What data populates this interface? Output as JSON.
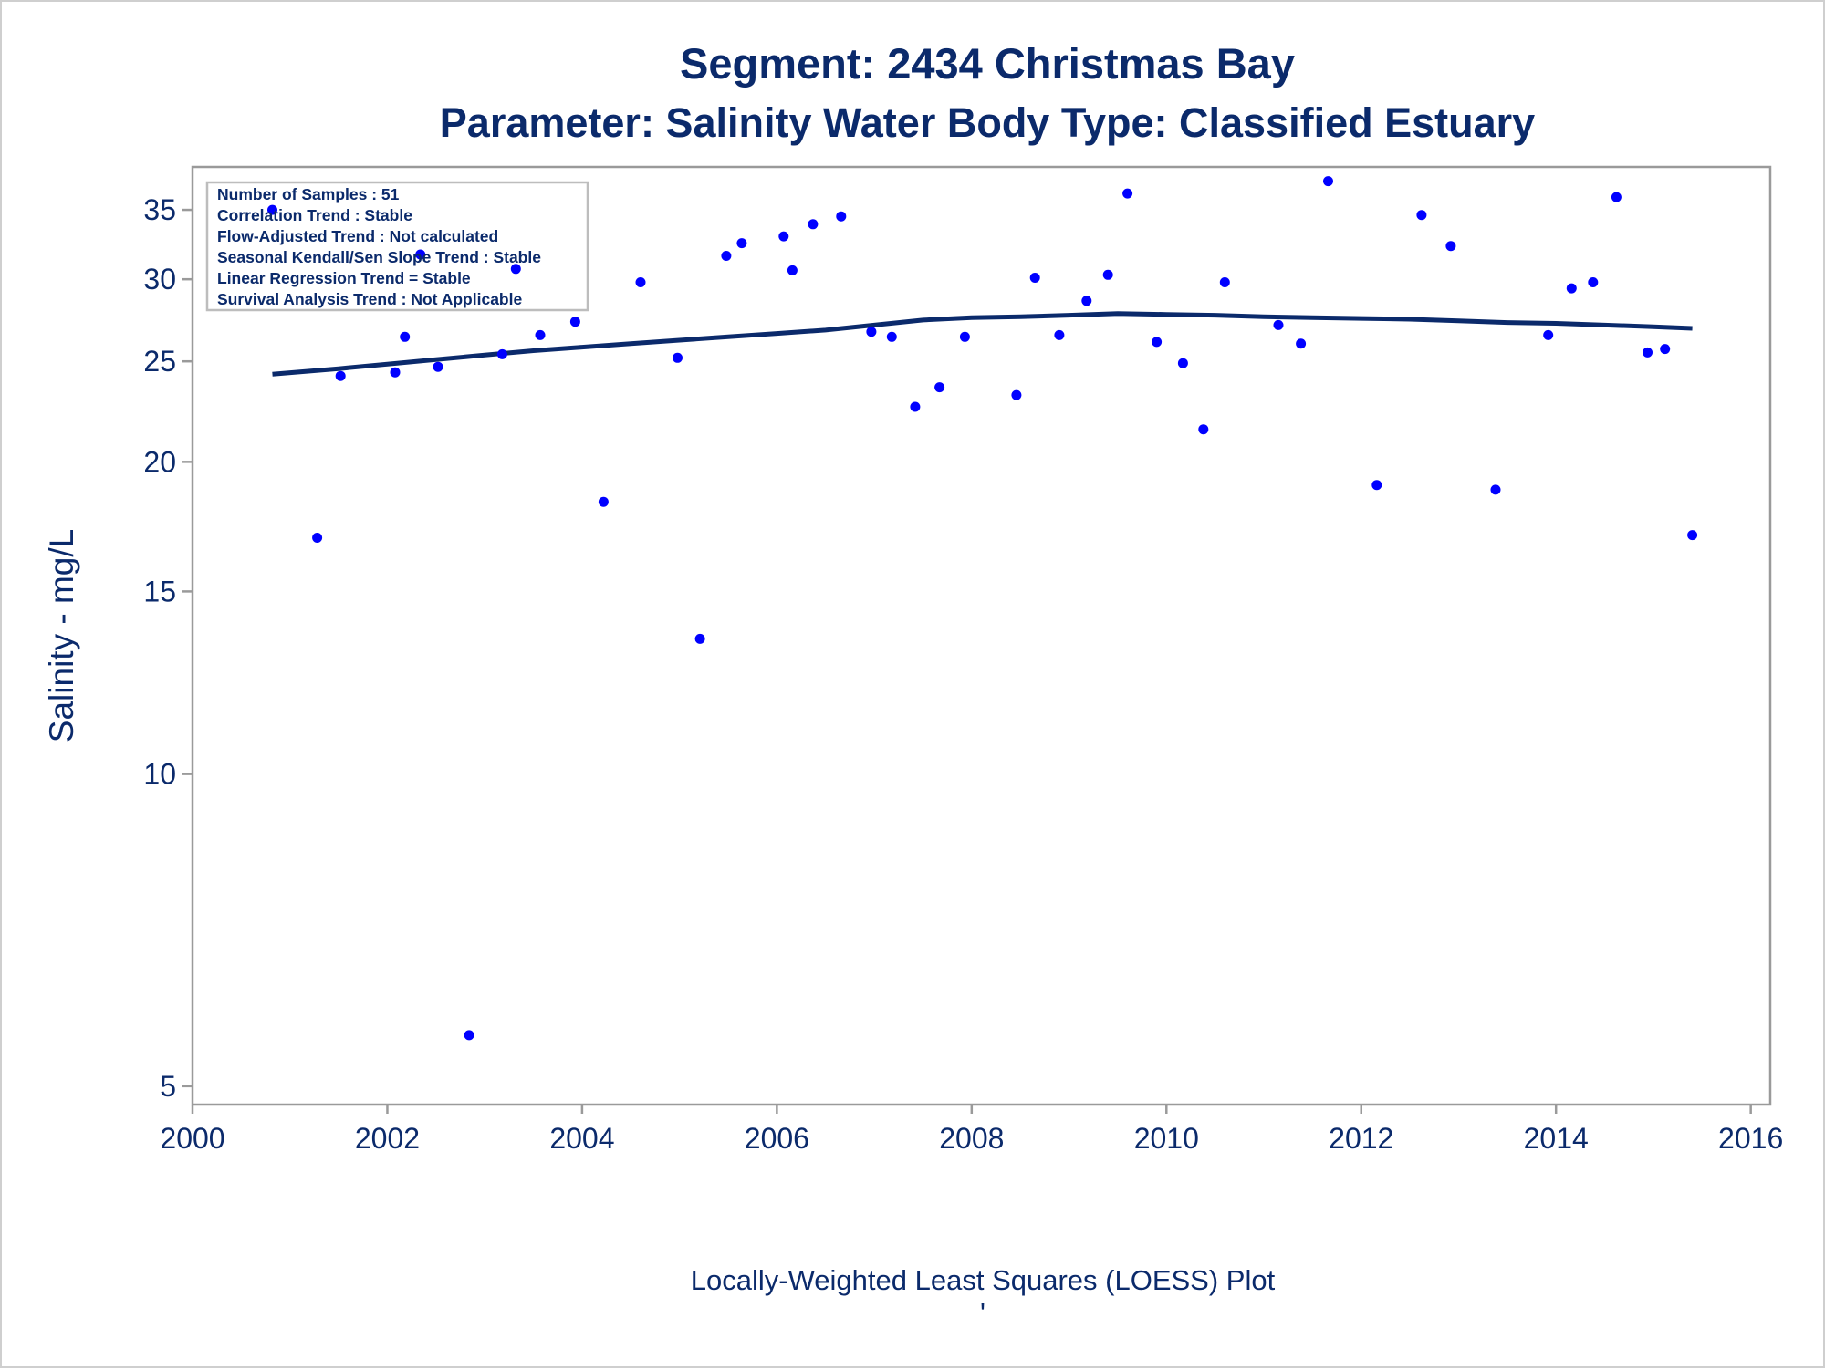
{
  "chart_data": {
    "type": "scatter",
    "title": "Segment: 2434  Christmas Bay",
    "subtitle": "Parameter: Salinity   Water Body Type: Classified Estuary",
    "xlabel": "Locally-Weighted Least Squares (LOESS) Plot",
    "ylabel": "Salinity - mg/L",
    "footnote_mark": "'",
    "x_scale": "linear",
    "y_scale": "log",
    "xlim": [
      2000,
      2016.2
    ],
    "ylim": [
      4.8,
      38.5
    ],
    "x_ticks": [
      "2000",
      "2002",
      "2004",
      "2006",
      "2008",
      "2010",
      "2012",
      "2014",
      "2016"
    ],
    "y_ticks": [
      "5",
      "10",
      "15",
      "20",
      "25",
      "30",
      "35"
    ],
    "grid": false,
    "legend": "none",
    "colors": {
      "points": "#0000ff",
      "loess": "#0b2a6b",
      "text": "#0b2a6b",
      "frame": "#9a9a9a"
    },
    "stats_box": {
      "placement": "top-left",
      "lines": [
        "Number of Samples : 51",
        "Correlation Trend : Stable",
        "Flow-Adjusted Trend : Not calculated",
        "Seasonal Kendall/Sen Slope Trend : Stable",
        "Linear Regression Trend = Stable",
        "Survival Analysis Trend : Not Applicable"
      ]
    },
    "points": [
      {
        "x": 2000.82,
        "y": 35.0
      },
      {
        "x": 2001.28,
        "y": 16.9
      },
      {
        "x": 2001.52,
        "y": 24.2
      },
      {
        "x": 2002.08,
        "y": 24.4
      },
      {
        "x": 2002.18,
        "y": 26.4
      },
      {
        "x": 2002.34,
        "y": 31.7
      },
      {
        "x": 2002.52,
        "y": 24.7
      },
      {
        "x": 2002.84,
        "y": 5.6
      },
      {
        "x": 2003.18,
        "y": 25.4
      },
      {
        "x": 2003.32,
        "y": 30.7
      },
      {
        "x": 2003.57,
        "y": 26.5
      },
      {
        "x": 2003.93,
        "y": 27.3
      },
      {
        "x": 2004.22,
        "y": 18.3
      },
      {
        "x": 2004.6,
        "y": 29.8
      },
      {
        "x": 2004.98,
        "y": 25.2
      },
      {
        "x": 2005.21,
        "y": 13.5
      },
      {
        "x": 2005.48,
        "y": 31.6
      },
      {
        "x": 2005.64,
        "y": 32.5
      },
      {
        "x": 2006.07,
        "y": 33.0
      },
      {
        "x": 2006.16,
        "y": 30.6
      },
      {
        "x": 2006.37,
        "y": 33.9
      },
      {
        "x": 2006.66,
        "y": 34.5
      },
      {
        "x": 2006.97,
        "y": 26.7
      },
      {
        "x": 2007.18,
        "y": 26.4
      },
      {
        "x": 2007.42,
        "y": 22.6
      },
      {
        "x": 2007.67,
        "y": 23.6
      },
      {
        "x": 2007.93,
        "y": 26.4
      },
      {
        "x": 2008.46,
        "y": 23.2
      },
      {
        "x": 2008.65,
        "y": 30.1
      },
      {
        "x": 2008.9,
        "y": 26.5
      },
      {
        "x": 2009.18,
        "y": 28.6
      },
      {
        "x": 2009.4,
        "y": 30.3
      },
      {
        "x": 2009.6,
        "y": 36.3
      },
      {
        "x": 2009.9,
        "y": 26.1
      },
      {
        "x": 2010.17,
        "y": 24.9
      },
      {
        "x": 2010.38,
        "y": 21.5
      },
      {
        "x": 2010.6,
        "y": 29.8
      },
      {
        "x": 2011.15,
        "y": 27.1
      },
      {
        "x": 2011.38,
        "y": 26.0
      },
      {
        "x": 2011.66,
        "y": 37.3
      },
      {
        "x": 2012.16,
        "y": 19.0
      },
      {
        "x": 2012.62,
        "y": 34.6
      },
      {
        "x": 2012.92,
        "y": 32.3
      },
      {
        "x": 2013.38,
        "y": 18.8
      },
      {
        "x": 2013.92,
        "y": 26.5
      },
      {
        "x": 2014.16,
        "y": 29.4
      },
      {
        "x": 2014.38,
        "y": 29.8
      },
      {
        "x": 2014.62,
        "y": 36.0
      },
      {
        "x": 2014.94,
        "y": 25.5
      },
      {
        "x": 2015.12,
        "y": 25.7
      },
      {
        "x": 2015.4,
        "y": 17.0
      }
    ],
    "loess": {
      "x": [
        2000.82,
        2001.5,
        2002.0,
        2002.5,
        2003.0,
        2003.5,
        2004.0,
        2004.5,
        2005.0,
        2005.5,
        2006.0,
        2006.5,
        2007.0,
        2007.5,
        2008.0,
        2008.5,
        2009.0,
        2009.5,
        2010.0,
        2010.5,
        2011.0,
        2011.5,
        2012.0,
        2012.5,
        2013.0,
        2013.5,
        2014.0,
        2014.5,
        2015.0,
        2015.4
      ],
      "y": [
        24.3,
        24.6,
        24.85,
        25.1,
        25.35,
        25.6,
        25.8,
        26.0,
        26.2,
        26.4,
        26.6,
        26.8,
        27.1,
        27.4,
        27.55,
        27.6,
        27.7,
        27.8,
        27.75,
        27.7,
        27.6,
        27.55,
        27.5,
        27.45,
        27.35,
        27.25,
        27.2,
        27.1,
        27.0,
        26.9
      ]
    }
  }
}
